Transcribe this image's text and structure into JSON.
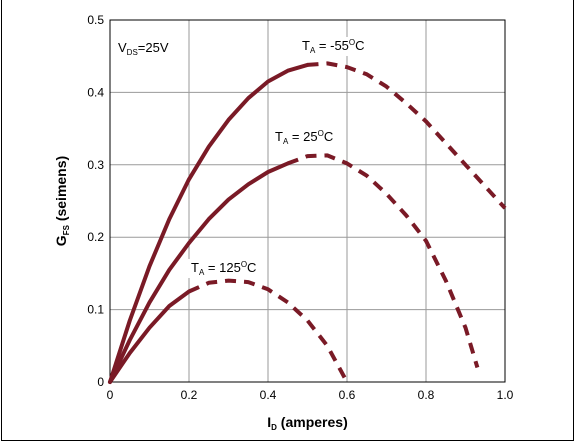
{
  "chart_data": {
    "type": "line",
    "xlim": [
      0,
      1.0
    ],
    "ylim": [
      0,
      0.5
    ],
    "x_ticks": [
      "0",
      "0.2",
      "0.4",
      "0.6",
      "0.8",
      "1.0"
    ],
    "y_ticks": [
      "0",
      "0.1",
      "0.2",
      "0.3",
      "0.4",
      "0.5"
    ],
    "xlabel": {
      "main": "I",
      "sub": "D",
      "rest": " (amperes)"
    },
    "ylabel": {
      "main": "G",
      "sub": "FS",
      "rest": " (seimens)"
    },
    "condition": {
      "main": "V",
      "sub": "DS",
      "rest": "=25V"
    },
    "grid": true,
    "series": [
      {
        "name": "T_A = -55°C",
        "label": {
          "main": "T",
          "sub": "A",
          "mid": " = -55",
          "sup": "O",
          "rest": "C"
        },
        "color": "#7a1a26",
        "solid": [
          [
            0,
            0
          ],
          [
            0.05,
            0.085
          ],
          [
            0.1,
            0.16
          ],
          [
            0.15,
            0.225
          ],
          [
            0.2,
            0.28
          ],
          [
            0.25,
            0.325
          ],
          [
            0.3,
            0.362
          ],
          [
            0.35,
            0.392
          ],
          [
            0.4,
            0.415
          ],
          [
            0.45,
            0.43
          ],
          [
            0.5,
            0.438
          ]
        ],
        "dashed": [
          [
            0.5,
            0.438
          ],
          [
            0.55,
            0.44
          ],
          [
            0.6,
            0.435
          ],
          [
            0.65,
            0.425
          ],
          [
            0.7,
            0.408
          ],
          [
            0.75,
            0.385
          ],
          [
            0.8,
            0.36
          ],
          [
            0.85,
            0.33
          ],
          [
            0.9,
            0.3
          ],
          [
            0.95,
            0.27
          ],
          [
            1.0,
            0.24
          ]
        ]
      },
      {
        "name": "T_A = 25°C",
        "label": {
          "main": "T",
          "sub": "A",
          "mid": " = 25",
          "sup": "O",
          "rest": "C"
        },
        "color": "#7a1a26",
        "solid": [
          [
            0,
            0
          ],
          [
            0.05,
            0.058
          ],
          [
            0.1,
            0.11
          ],
          [
            0.15,
            0.155
          ],
          [
            0.2,
            0.192
          ],
          [
            0.25,
            0.225
          ],
          [
            0.3,
            0.252
          ],
          [
            0.35,
            0.273
          ],
          [
            0.4,
            0.29
          ],
          [
            0.45,
            0.302
          ]
        ],
        "dashed": [
          [
            0.45,
            0.302
          ],
          [
            0.5,
            0.312
          ],
          [
            0.55,
            0.313
          ],
          [
            0.6,
            0.302
          ],
          [
            0.65,
            0.285
          ],
          [
            0.7,
            0.26
          ],
          [
            0.75,
            0.23
          ],
          [
            0.8,
            0.195
          ],
          [
            0.85,
            0.14
          ],
          [
            0.9,
            0.075
          ],
          [
            0.93,
            0.02
          ]
        ]
      },
      {
        "name": "T_A = 125°C",
        "label": {
          "main": "T",
          "sub": "A",
          "mid": " = 125",
          "sup": "O",
          "rest": "C"
        },
        "color": "#7a1a26",
        "solid": [
          [
            0,
            0
          ],
          [
            0.05,
            0.04
          ],
          [
            0.1,
            0.075
          ],
          [
            0.15,
            0.105
          ],
          [
            0.2,
            0.125
          ]
        ],
        "dashed": [
          [
            0.2,
            0.125
          ],
          [
            0.25,
            0.137
          ],
          [
            0.3,
            0.14
          ],
          [
            0.35,
            0.138
          ],
          [
            0.4,
            0.128
          ],
          [
            0.45,
            0.11
          ],
          [
            0.5,
            0.085
          ],
          [
            0.55,
            0.05
          ],
          [
            0.58,
            0.02
          ],
          [
            0.6,
            0.0
          ]
        ]
      }
    ]
  }
}
